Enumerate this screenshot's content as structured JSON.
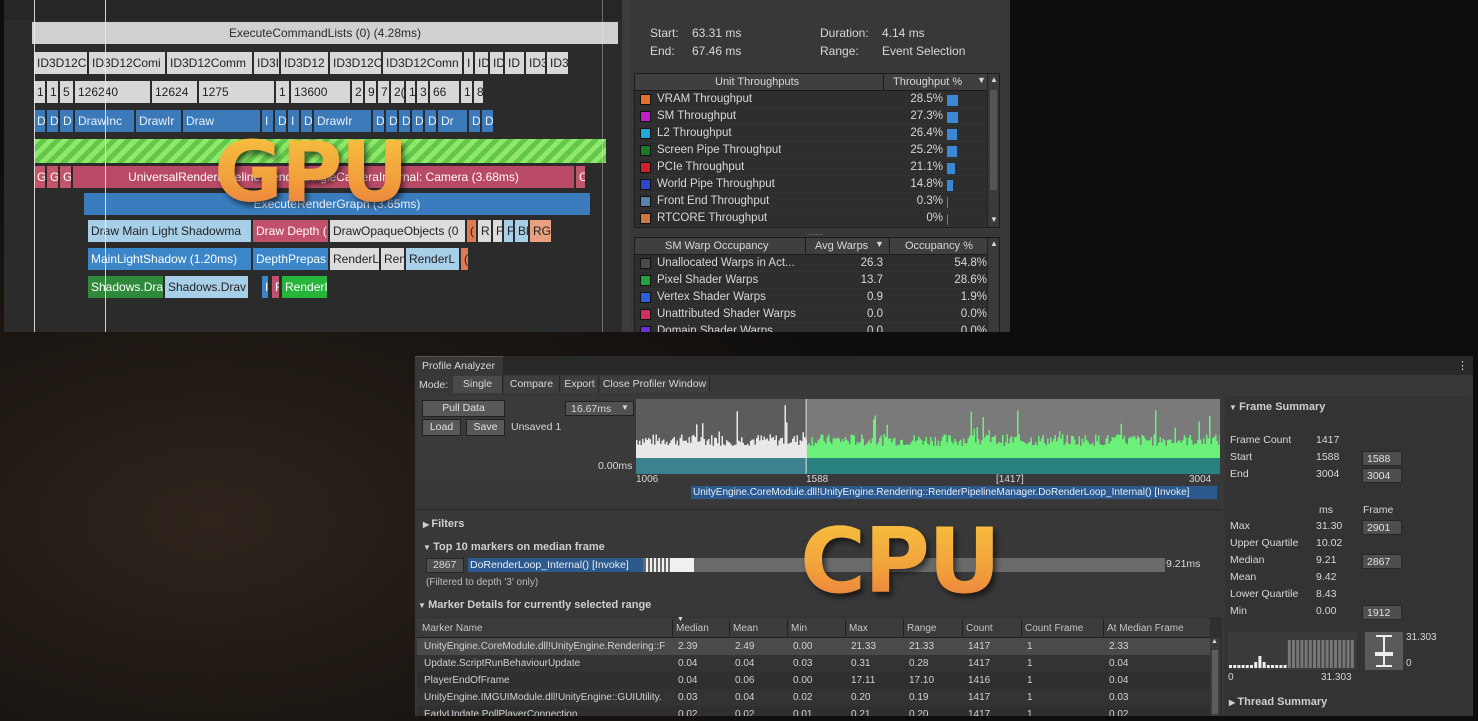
{
  "gpu": {
    "header_label": "ExecuteCommandLists (0) (4.28ms)",
    "row2": [
      "ID3D12C",
      "ID3D12Comi",
      "ID3D12Comm",
      "ID3I",
      "ID3D12",
      "ID3D12C",
      "ID3D12Comn",
      "I",
      "ID",
      "ID",
      "ID",
      "ID3",
      "ID3"
    ],
    "row3": [
      "1",
      "1",
      "5",
      "126240",
      "12624",
      "1275",
      "1",
      "13600",
      "2",
      "9",
      "7",
      "2(",
      "1",
      "3",
      "66",
      "1",
      "8"
    ],
    "row4": [
      "D",
      "D",
      "D",
      "DrawInc",
      "DrawIr",
      "Draw",
      "I",
      "D",
      "I",
      "D",
      "DrawIr",
      "D",
      "D",
      "D",
      "D",
      "D",
      "Dr",
      "D",
      "D"
    ],
    "row5": [
      "G",
      "G",
      "G",
      "UniversalRenderPipeline.RenderSingleCameraInternal: Camera (3.68ms)",
      "C"
    ],
    "row6": "ExecuteRenderGraph (3.65ms)",
    "row7": [
      "Draw Main Light Shadowma",
      "Draw Depth (",
      "DrawOpaqueObjects (0",
      "(",
      "R",
      "F",
      "F",
      "Bl",
      "RG"
    ],
    "row8": [
      "MainLightShadow (1.20ms)",
      "DepthPrepas",
      "RenderL",
      "Ren",
      "RenderL",
      "("
    ],
    "row9": [
      "Shadows.Dra",
      "Shadows.Drav",
      "I",
      "F",
      "RenderI"
    ],
    "info": {
      "start_label": "Start:",
      "start_value": "63.31 ms",
      "end_label": "End:",
      "end_value": "67.46 ms",
      "duration_label": "Duration:",
      "duration_value": "4.14 ms",
      "range_label": "Range:",
      "range_value": "Event Selection"
    },
    "throughput": {
      "col1": "Unit Throughputs",
      "col2": "Throughput %",
      "rows": [
        {
          "name": "VRAM Throughput",
          "value": "28.5%",
          "pct": 28.5,
          "color": "#e0702a"
        },
        {
          "name": "SM Throughput",
          "value": "27.3%",
          "pct": 27.3,
          "color": "#c020c8"
        },
        {
          "name": "L2 Throughput",
          "value": "26.4%",
          "pct": 26.4,
          "color": "#20a8d8"
        },
        {
          "name": "Screen Pipe Throughput",
          "value": "25.2%",
          "pct": 25.2,
          "color": "#1a7a2a"
        },
        {
          "name": "PCIe Throughput",
          "value": "21.1%",
          "pct": 21.1,
          "color": "#d02028"
        },
        {
          "name": "World Pipe Throughput",
          "value": "14.8%",
          "pct": 14.8,
          "color": "#2a48c8"
        },
        {
          "name": "Front End Throughput",
          "value": "0.3%",
          "pct": 0.3,
          "color": "#5a82a8"
        },
        {
          "name": "RTCORE Throughput",
          "value": "0%",
          "pct": 0,
          "color": "#d07a40"
        }
      ]
    },
    "warps": {
      "col1": "SM Warp Occupancy",
      "col2": "Avg Warps",
      "col3": "Occupancy %",
      "rows": [
        {
          "name": "Unallocated Warps in Act...",
          "avg": "26.3",
          "occ": "54.8%",
          "color": "#4a4a4a"
        },
        {
          "name": "Pixel Shader Warps",
          "avg": "13.7",
          "occ": "28.6%",
          "color": "#23a040"
        },
        {
          "name": "Vertex Shader Warps",
          "avg": "0.9",
          "occ": "1.9%",
          "color": "#2a60d8"
        },
        {
          "name": "Unattributed Shader Warps",
          "avg": "0.0",
          "occ": "0.0%",
          "color": "#d03060"
        },
        {
          "name": "Domain Shader Warps",
          "avg": "0.0",
          "occ": "0.0%",
          "color": "#6a30d8"
        }
      ]
    }
  },
  "cpu": {
    "title": "Profile Analyzer",
    "menu_icon": "⋮",
    "mode_label": "Mode:",
    "tabs": [
      "Single",
      "Compare",
      "Export",
      "Close Profiler Window"
    ],
    "pull_data": "Pull Data",
    "load": "Load",
    "save": "Save",
    "unsaved": "Unsaved 1",
    "frame_select": "16.67ms",
    "graph": {
      "zero_label": "0.00ms",
      "ticks": [
        "1006",
        "1588",
        "[1417]",
        "3004"
      ],
      "marker_label": "UnityEngine.CoreModule.dll!UnityEngine.Rendering::RenderPipelineManager.DoRenderLoop_Internal() [Invoke]",
      "range_start": 1006,
      "range_end": 3004,
      "sel_start": 1588,
      "sel_end": 3004
    },
    "filters": "Filters",
    "top10": "Top 10 markers on median frame",
    "top_frame": "2867",
    "top_marker": "DoRenderLoop_Internal() [Invoke]",
    "top_ms": "9.21ms",
    "filtered_note": "(Filtered to depth '3' only)",
    "marker_details": "Marker Details for currently selected range",
    "columns": [
      "Marker Name",
      "Median",
      "Mean",
      "Min",
      "Max",
      "Range",
      "Count",
      "Count Frame",
      "At Median Frame"
    ],
    "rows": [
      [
        "UnityEngine.CoreModule.dll!UnityEngine.Rendering::F",
        "2.39",
        "2.49",
        "0.00",
        "21.33",
        "21.33",
        "1417",
        "1",
        "2.33"
      ],
      [
        "Update.ScriptRunBehaviourUpdate",
        "0.04",
        "0.04",
        "0.03",
        "0.31",
        "0.28",
        "1417",
        "1",
        "0.04"
      ],
      [
        "PlayerEndOfFrame",
        "0.04",
        "0.06",
        "0.00",
        "17.11",
        "17.10",
        "1416",
        "1",
        "0.04"
      ],
      [
        "UnityEngine.IMGUIModule.dll!UnityEngine::GUIUtility.",
        "0.03",
        "0.04",
        "0.02",
        "0.20",
        "0.19",
        "1417",
        "1",
        "0.03"
      ],
      [
        "EarlyUpdate.PollPlayerConnection",
        "0.02",
        "0.02",
        "0.01",
        "0.21",
        "0.20",
        "1417",
        "1",
        "0.02"
      ]
    ],
    "summary": {
      "title": "Frame Summary",
      "frame_count_label": "Frame Count",
      "frame_count": "1417",
      "start_label": "Start",
      "start": "1588",
      "start_box": "1588",
      "end_label": "End",
      "end": "3004",
      "end_box": "3004",
      "ms_col": "ms",
      "frame_col": "Frame",
      "stats": [
        {
          "label": "Max",
          "ms": "31.30",
          "frame": "2901"
        },
        {
          "label": "Upper Quartile",
          "ms": "10.02",
          "frame": ""
        },
        {
          "label": "Median",
          "ms": "9.21",
          "frame": "2867"
        },
        {
          "label": "Mean",
          "ms": "9.42",
          "frame": ""
        },
        {
          "label": "Lower Quartile",
          "ms": "8.43",
          "frame": ""
        },
        {
          "label": "Min",
          "ms": "0.00",
          "frame": "1912"
        }
      ],
      "hist_max": "31.303",
      "hist_zero": "0",
      "hist_axis_left": "0",
      "hist_axis_right": "31.303",
      "thread_summary": "Thread Summary"
    }
  },
  "overlays": {
    "gpu": "GPU",
    "cpu": "CPU"
  }
}
